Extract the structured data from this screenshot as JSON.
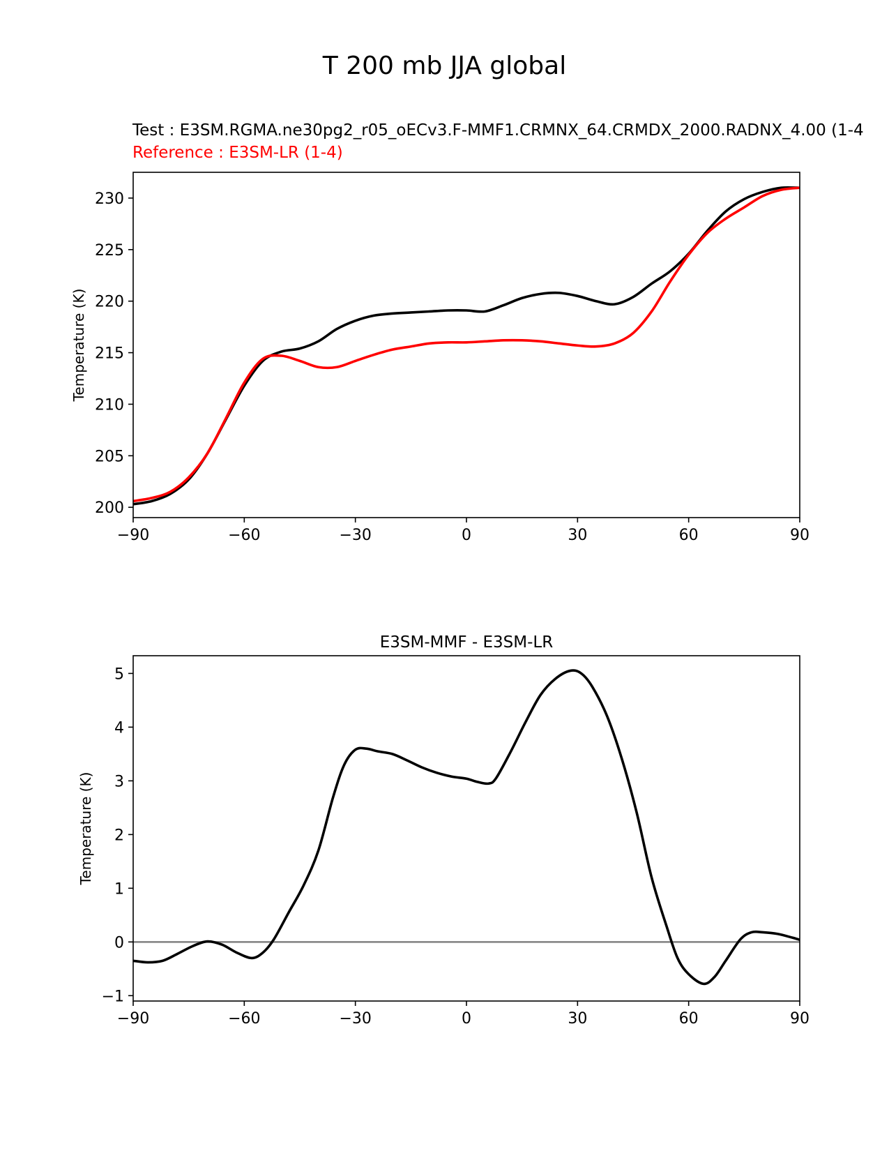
{
  "figure_title": "T 200 mb JJA global",
  "colors": {
    "test": "#000000",
    "reference": "#ff0000",
    "zero_line": "#808080"
  },
  "chart_data": [
    {
      "type": "line",
      "name": "comparison",
      "test_label": "Test : E3SM.RGMA.ne30pg2_r05_oECv3.F-MMF1.CRMNX_64.CRMDX_2000.RADNX_4.00 (1-4",
      "reference_label": "Reference : E3SM-LR (1-4)",
      "xlabel": "",
      "ylabel": "Temperature (K)",
      "xlim": [
        -90,
        90
      ],
      "ylim": [
        199.0,
        232.5
      ],
      "xticks": [
        -90,
        -60,
        -30,
        0,
        30,
        60,
        90
      ],
      "xtick_labels": [
        "−90",
        "−60",
        "−30",
        "0",
        "30",
        "60",
        "90"
      ],
      "yticks": [
        200,
        205,
        210,
        215,
        220,
        225,
        230
      ],
      "ytick_labels": [
        "200",
        "205",
        "210",
        "215",
        "220",
        "225",
        "230"
      ],
      "x": [
        -90,
        -85,
        -80,
        -75,
        -70,
        -65,
        -60,
        -55,
        -50,
        -45,
        -40,
        -35,
        -30,
        -25,
        -20,
        -15,
        -10,
        -5,
        0,
        5,
        10,
        15,
        20,
        25,
        30,
        35,
        40,
        45,
        50,
        55,
        60,
        65,
        70,
        75,
        80,
        85,
        90
      ],
      "series": [
        {
          "name": "Test",
          "color": "#000000",
          "values": [
            200.3,
            200.6,
            201.3,
            202.7,
            205.2,
            208.5,
            211.8,
            214.2,
            215.1,
            215.4,
            216.1,
            217.3,
            218.1,
            218.6,
            218.8,
            218.9,
            219.0,
            219.1,
            219.1,
            219.0,
            219.6,
            220.3,
            220.7,
            220.8,
            220.5,
            220.0,
            219.7,
            220.4,
            221.7,
            222.9,
            224.6,
            226.8,
            228.7,
            229.9,
            230.6,
            231.0,
            231.0
          ]
        },
        {
          "name": "Reference",
          "color": "#ff0000",
          "values": [
            200.6,
            200.9,
            201.5,
            202.9,
            205.2,
            208.6,
            212.1,
            214.4,
            214.7,
            214.2,
            213.6,
            213.6,
            214.2,
            214.8,
            215.3,
            215.6,
            215.9,
            216.0,
            216.0,
            216.1,
            216.2,
            216.2,
            216.1,
            215.9,
            215.7,
            215.6,
            215.9,
            216.9,
            219.0,
            221.9,
            224.5,
            226.6,
            228.0,
            229.1,
            230.2,
            230.8,
            231.0
          ]
        }
      ]
    },
    {
      "type": "line",
      "name": "difference",
      "title": "E3SM-MMF - E3SM-LR",
      "xlabel": "",
      "ylabel": "Temperature (K)",
      "xlim": [
        -90,
        90
      ],
      "ylim": [
        -1.1,
        5.33
      ],
      "xticks": [
        -90,
        -60,
        -30,
        0,
        30,
        60,
        90
      ],
      "xtick_labels": [
        "−90",
        "−60",
        "−30",
        "0",
        "30",
        "60",
        "90"
      ],
      "yticks": [
        -1,
        0,
        1,
        2,
        3,
        4,
        5
      ],
      "ytick_labels": [
        "−1",
        "0",
        "1",
        "2",
        "3",
        "4",
        "5"
      ],
      "reference_line": 0,
      "x": [
        -90,
        -86,
        -82,
        -78,
        -74,
        -70,
        -66,
        -62,
        -58,
        -55,
        -52,
        -48,
        -44,
        -40,
        -36,
        -33,
        -30,
        -27,
        -24,
        -20,
        -16,
        -12,
        -8,
        -4,
        0,
        3,
        6,
        8,
        12,
        16,
        20,
        24,
        28,
        31,
        34,
        38,
        42,
        46,
        50,
        54,
        57,
        60,
        64,
        67,
        70,
        74,
        77,
        80,
        84,
        88,
        90
      ],
      "series": [
        {
          "name": "Difference",
          "color": "#000000",
          "values": [
            -0.35,
            -0.38,
            -0.35,
            -0.22,
            -0.08,
            0.01,
            -0.05,
            -0.2,
            -0.3,
            -0.2,
            0.05,
            0.55,
            1.05,
            1.7,
            2.7,
            3.3,
            3.58,
            3.6,
            3.55,
            3.5,
            3.38,
            3.25,
            3.15,
            3.08,
            3.04,
            2.98,
            2.95,
            3.05,
            3.55,
            4.1,
            4.6,
            4.9,
            5.05,
            5.0,
            4.75,
            4.2,
            3.4,
            2.4,
            1.2,
            0.3,
            -0.3,
            -0.6,
            -0.78,
            -0.65,
            -0.35,
            0.05,
            0.18,
            0.18,
            0.15,
            0.08,
            0.04
          ]
        }
      ]
    }
  ]
}
